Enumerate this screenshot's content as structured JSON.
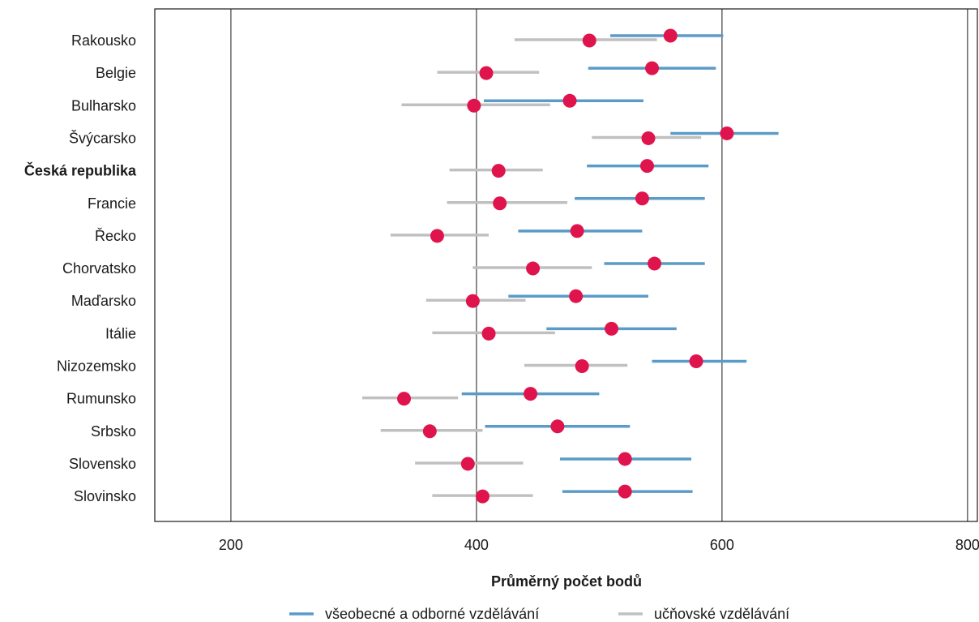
{
  "chart_data": {
    "type": "dot-range",
    "xlabel": "Průměrný počet bodů",
    "xlim": [
      138,
      808
    ],
    "xticks": [
      200,
      400,
      600,
      800
    ],
    "grid": "vertical lines at ticks",
    "legend_position": "bottom",
    "highlighted_category": "Česká republika",
    "categories": [
      "Rakousko",
      "Belgie",
      "Bulharsko",
      "Švýcarsko",
      "Česká republika",
      "Francie",
      "Řecko",
      "Chorvatsko",
      "Maďarsko",
      "Itálie",
      "Nizozemsko",
      "Rumunsko",
      "Srbsko",
      "Slovensko",
      "Slovinsko"
    ],
    "series": [
      {
        "name": "všeobecné a odborné vzdělávání",
        "color": "#5b9bc8",
        "mean": [
          558,
          543,
          476,
          604,
          539,
          535,
          482,
          545,
          481,
          510,
          579,
          444,
          466,
          521,
          521
        ],
        "low": [
          509,
          491,
          406,
          558,
          490,
          480,
          434,
          504,
          426,
          457,
          543,
          388,
          407,
          468,
          470
        ],
        "high": [
          601,
          595,
          536,
          646,
          589,
          586,
          535,
          586,
          540,
          563,
          620,
          500,
          525,
          575,
          576
        ]
      },
      {
        "name": "učňovské vzdělávání",
        "color": "#c0c0c0",
        "mean": [
          492,
          408,
          398,
          540,
          418,
          419,
          368,
          446,
          397,
          410,
          486,
          341,
          362,
          393,
          405
        ],
        "low": [
          431,
          368,
          339,
          494,
          378,
          376,
          330,
          397,
          359,
          364,
          439,
          307,
          322,
          350,
          364
        ],
        "high": [
          547,
          451,
          460,
          583,
          454,
          474,
          410,
          494,
          440,
          464,
          523,
          385,
          405,
          438,
          446
        ]
      }
    ],
    "marker_color": "#e0144c"
  }
}
